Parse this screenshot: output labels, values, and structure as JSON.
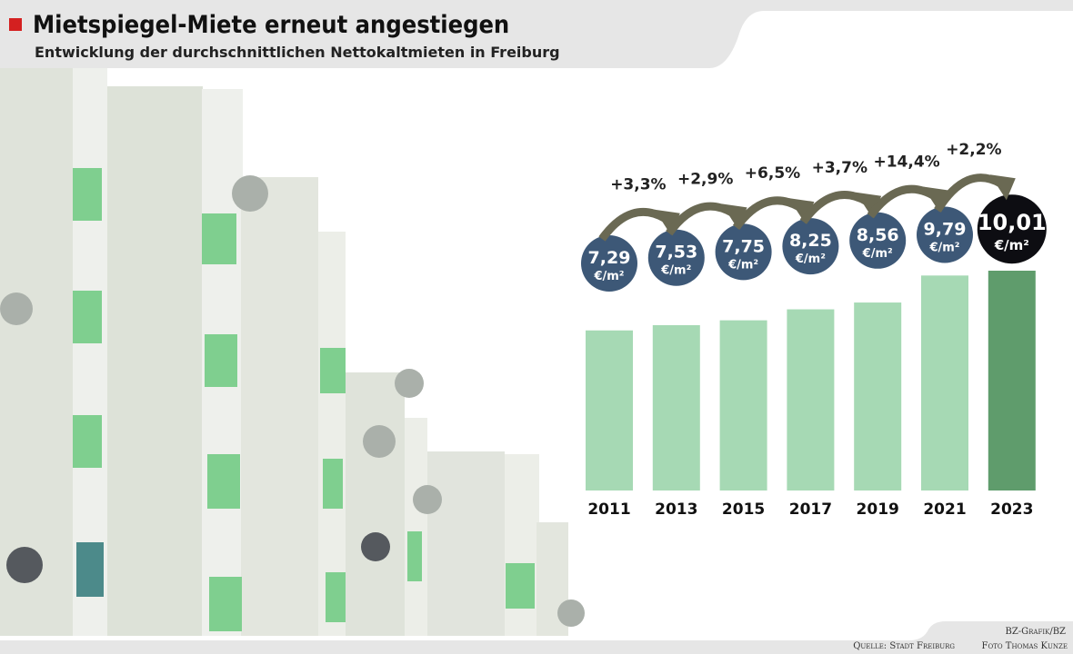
{
  "header": {
    "title": "Mietspiegel-Miete erneut angestiegen",
    "subtitle": "Entwicklung der durchschnittlichen Nettokaltmieten in Freiburg"
  },
  "chart_data": {
    "type": "bar",
    "categories": [
      "2011",
      "2013",
      "2015",
      "2017",
      "2019",
      "2021",
      "2023"
    ],
    "values": [
      7.29,
      7.53,
      7.75,
      8.25,
      8.56,
      9.79,
      10.01
    ],
    "value_labels": [
      "7,29",
      "7,53",
      "7,75",
      "8,25",
      "8,56",
      "9,79",
      "10,01"
    ],
    "unit": "€/m²",
    "changes": [
      "+3,3%",
      "+2,9%",
      "+6,5%",
      "+3,7%",
      "+14,4%",
      "+2,2%"
    ],
    "colors": [
      "#a6d9b4",
      "#a6d9b4",
      "#a6d9b4",
      "#a6d9b4",
      "#a6d9b4",
      "#a6d9b4",
      "#5f9c6c"
    ],
    "label_colors": [
      "#3d5877",
      "#3d5877",
      "#3d5877",
      "#3d5877",
      "#3d5877",
      "#3d5877",
      "#0d0d12"
    ]
  },
  "footer": {
    "credit": "BZ-Grafik/BZ",
    "source": "Quelle: Stadt Freiburg",
    "photo": "Foto Thomas Kunze"
  }
}
